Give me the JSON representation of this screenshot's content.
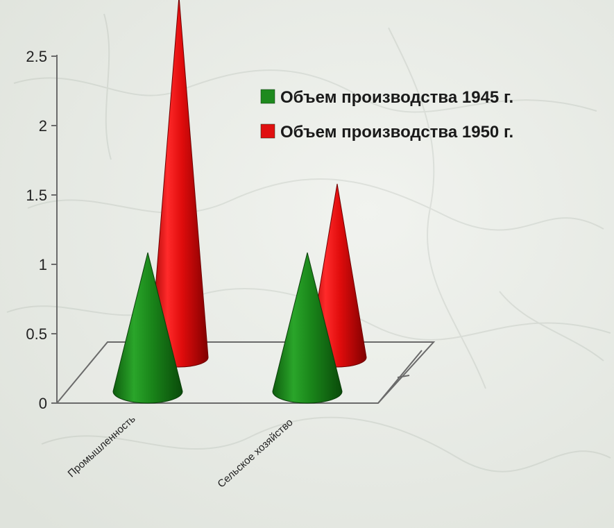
{
  "chart_data": {
    "type": "bar",
    "shape": "3d-cone",
    "categories": [
      "Промышленность",
      "Сельское хозяйство"
    ],
    "series": [
      {
        "name": "Объем производства 1945 г.",
        "values": [
          1.0,
          1.0
        ],
        "color": "#1e8a1e"
      },
      {
        "name": "Объем производства 1950 г.",
        "values": [
          2.6,
          1.25
        ],
        "color": "#e01010"
      }
    ],
    "yticks": [
      "0",
      "0.5",
      "1",
      "1.5",
      "2",
      "2.5"
    ],
    "ylim": [
      0,
      2.5
    ],
    "grid": false,
    "legend": "top-right"
  }
}
